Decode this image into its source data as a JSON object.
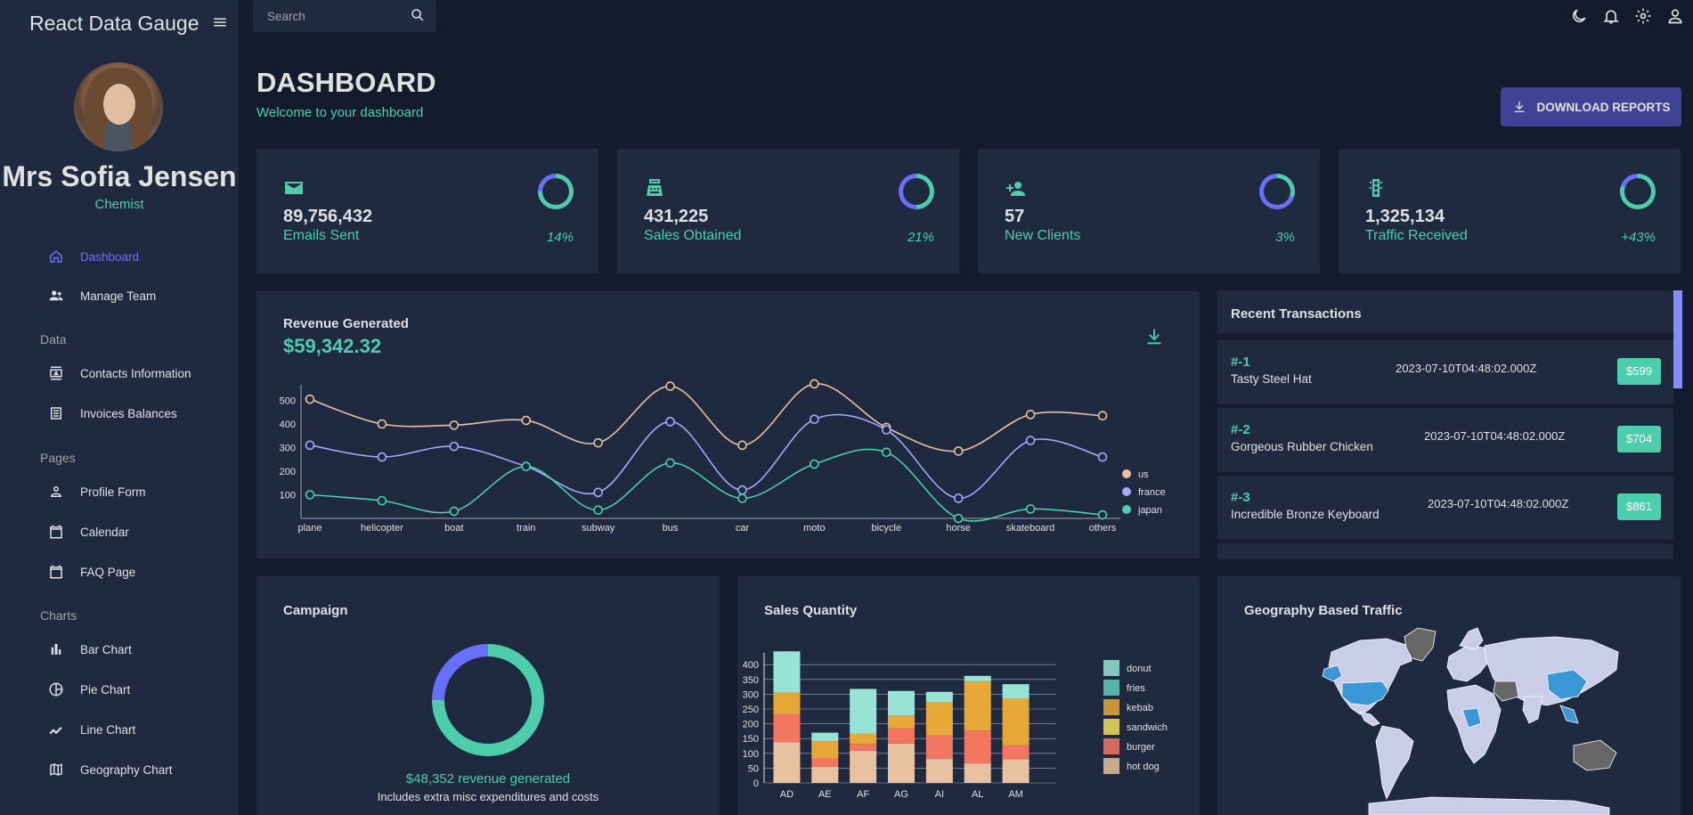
{
  "app": {
    "brand": "React Data Gauge"
  },
  "profile": {
    "name": "Mrs Sofia Jensen",
    "role": "Chemist"
  },
  "nav": {
    "items": [
      {
        "label": "Dashboard"
      },
      {
        "label": "Manage Team"
      },
      {
        "label": "Contacts Information"
      },
      {
        "label": "Invoices Balances"
      },
      {
        "label": "Profile Form"
      },
      {
        "label": "Calendar"
      },
      {
        "label": "FAQ Page"
      },
      {
        "label": "Bar Chart"
      },
      {
        "label": "Pie Chart"
      },
      {
        "label": "Line Chart"
      },
      {
        "label": "Geography Chart"
      }
    ],
    "sections": [
      {
        "label": "Data"
      },
      {
        "label": "Pages"
      },
      {
        "label": "Charts"
      }
    ]
  },
  "topbar": {
    "search_placeholder": "Search"
  },
  "header": {
    "title": "DASHBOARD",
    "subtitle": "Welcome to your dashboard",
    "download_label": "DOWNLOAD REPORTS"
  },
  "stats": [
    {
      "value": "89,756,432",
      "label": "Emails Sent",
      "increase": "14%",
      "progress": 0.75,
      "icon": "email-icon"
    },
    {
      "value": "431,225",
      "label": "Sales Obtained",
      "increase": "21%",
      "progress": 0.5,
      "icon": "point-of-sale-icon"
    },
    {
      "value": "57",
      "label": "New Clients",
      "increase": "3%",
      "progress": 0.3,
      "icon": "person-add-icon"
    },
    {
      "value": "1,325,134",
      "label": "Traffic Received",
      "increase": "+43%",
      "progress": 0.8,
      "icon": "traffic-icon"
    }
  ],
  "revenue": {
    "title": "Revenue Generated",
    "value": "$59,342.32"
  },
  "transactions": {
    "title": "Recent Transactions",
    "items": [
      {
        "id": "#-1",
        "name": "Tasty Steel Hat",
        "date": "2023-07-10T04:48:02.000Z",
        "cost": "$599"
      },
      {
        "id": "#-2",
        "name": "Gorgeous Rubber Chicken",
        "date": "2023-07-10T04:48:02.000Z",
        "cost": "$704"
      },
      {
        "id": "#-3",
        "name": "Incredible Bronze Keyboard",
        "date": "2023-07-10T04:48:02.000Z",
        "cost": "$861"
      }
    ]
  },
  "campaign": {
    "title": "Campaign",
    "revenue_text": "$48,352 revenue generated",
    "note": "Includes extra misc expenditures and costs",
    "progress": 0.75
  },
  "sales": {
    "title": "Sales Quantity"
  },
  "geo": {
    "title": "Geography Based Traffic"
  },
  "colors": {
    "accent_green": "#4cceac",
    "accent_blue": "#6870fa",
    "background": "#141b2d",
    "card": "#1f2a40",
    "button": "#3e4396"
  },
  "chart_data": [
    {
      "type": "line",
      "x": [
        "plane",
        "helicopter",
        "boat",
        "train",
        "subway",
        "bus",
        "car",
        "moto",
        "bicycle",
        "horse",
        "skateboard",
        "others"
      ],
      "ylim": [
        0,
        560
      ],
      "yticks": [
        100,
        200,
        300,
        400,
        500
      ],
      "legend": "right",
      "series": [
        {
          "name": "us",
          "color": "#e8c1a0",
          "values": [
            505,
            400,
            395,
            415,
            320,
            560,
            310,
            570,
            385,
            285,
            440,
            435
          ]
        },
        {
          "name": "france",
          "color": "#a4a9fc",
          "values": [
            310,
            260,
            305,
            220,
            110,
            410,
            120,
            420,
            375,
            85,
            330,
            260
          ]
        },
        {
          "name": "japan",
          "color": "#4cceac",
          "values": [
            100,
            75,
            30,
            220,
            35,
            235,
            85,
            230,
            280,
            0,
            40,
            15
          ]
        }
      ]
    },
    {
      "type": "bar",
      "stacked": true,
      "categories": [
        "AD",
        "AE",
        "AF",
        "AG",
        "AI",
        "AL",
        "AM"
      ],
      "ylim": [
        0,
        440
      ],
      "yticks": [
        0,
        50,
        100,
        150,
        200,
        250,
        300,
        350,
        400
      ],
      "legend": "right",
      "series": [
        {
          "name": "hot dog",
          "color": "#e8c1a0",
          "values": [
            137,
            55,
            109,
            133,
            81,
            66,
            80
          ]
        },
        {
          "name": "burger",
          "color": "#f47560",
          "values": [
            96,
            28,
            23,
            52,
            80,
            111,
            47
          ]
        },
        {
          "name": "sandwich",
          "color": "#f1e15b",
          "values": [
            0,
            0,
            0,
            0,
            0,
            0,
            0
          ]
        },
        {
          "name": "kebab",
          "color": "#e8a838",
          "values": [
            72,
            58,
            34,
            43,
            112,
            167,
            158
          ]
        },
        {
          "name": "fries",
          "color": "#61cdbb",
          "values": [
            0,
            0,
            0,
            0,
            0,
            0,
            0
          ]
        },
        {
          "name": "donut",
          "color": "#97e3d5",
          "values": [
            140,
            29,
            152,
            83,
            35,
            18,
            49
          ]
        }
      ]
    }
  ]
}
